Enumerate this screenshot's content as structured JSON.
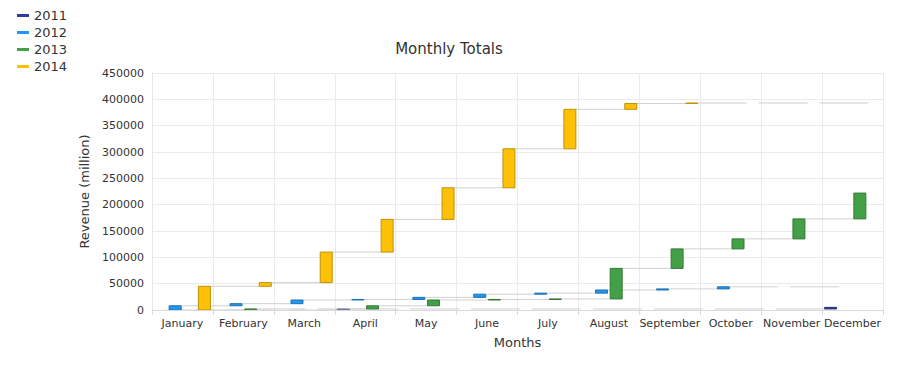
{
  "chart_data": {
    "type": "waterfall",
    "title": "Monthly Totals",
    "x_label": "Months",
    "y_label": "Revenue (million)",
    "categories": [
      "January",
      "February",
      "March",
      "April",
      "May",
      "June",
      "July",
      "August",
      "September",
      "October",
      "November",
      "December"
    ],
    "series": [
      {
        "name": "2011",
        "color": "#2f3e9e",
        "values": [
          0,
          0,
          0,
          2000,
          0,
          0,
          0,
          0,
          0,
          0,
          0,
          3000
        ]
      },
      {
        "name": "2012",
        "color": "#2196f3",
        "values": [
          8000,
          4000,
          7000,
          1000,
          4000,
          6000,
          2000,
          6000,
          2000,
          4000,
          0,
          0
        ]
      },
      {
        "name": "2013",
        "color": "#43a047",
        "values": [
          0,
          2000,
          0,
          6000,
          11000,
          1000,
          1000,
          58000,
          37000,
          19000,
          38000,
          49000
        ]
      },
      {
        "name": "2014",
        "color": "#ffc107",
        "values": [
          45000,
          7000,
          58000,
          62000,
          60000,
          74000,
          75000,
          11000,
          1000,
          0,
          0,
          0
        ]
      }
    ],
    "ylim": [
      0,
      450000
    ],
    "yticks": [
      0,
      50000,
      100000,
      150000,
      200000,
      250000,
      300000,
      350000,
      400000,
      450000
    ],
    "grid": true,
    "legend": "top-left"
  }
}
